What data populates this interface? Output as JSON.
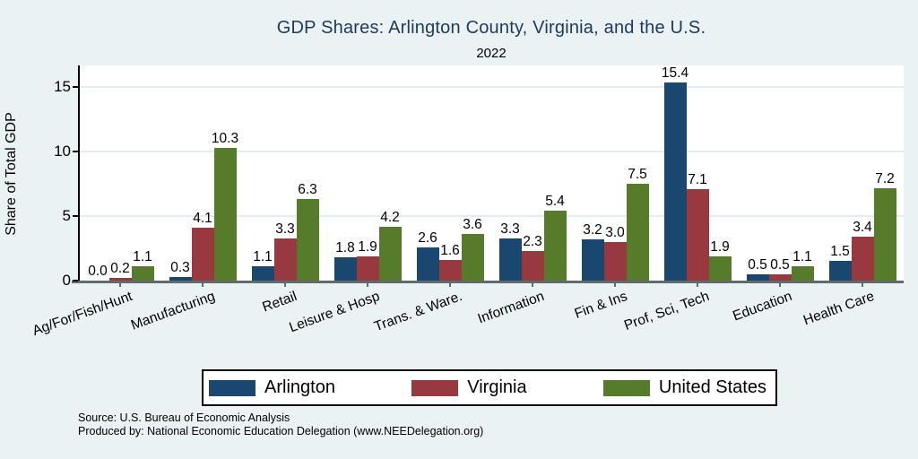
{
  "page": {
    "background_color": "#eaf2f3",
    "plot_background_color": "#ffffff"
  },
  "chart_data": {
    "type": "bar",
    "title": "GDP Shares: Arlington County, Virginia, and the U.S.",
    "subtitle": "2022",
    "xlabel": "",
    "ylabel": "Share of Total GDP",
    "ylim": [
      0,
      16.7
    ],
    "yticks": [
      0,
      5,
      10,
      15
    ],
    "grid": true,
    "legend_position": "bottom",
    "bar_value_labels": true,
    "categories": [
      "Ag/For/Fish/Hunt",
      "Manufacturing",
      "Retail",
      "Leisure & Hosp",
      "Trans. & Ware.",
      "Information",
      "Fin & Ins",
      "Prof, Sci, Tech",
      "Education",
      "Health Care"
    ],
    "series": [
      {
        "name": "Arlington",
        "color": "#1a476f",
        "values": [
          0.0,
          0.3,
          1.1,
          1.8,
          2.6,
          3.3,
          3.2,
          15.4,
          0.5,
          1.5
        ]
      },
      {
        "name": "Virginia",
        "color": "#98383f",
        "values": [
          0.2,
          4.1,
          3.3,
          1.9,
          1.6,
          2.3,
          3.0,
          7.1,
          0.5,
          3.4
        ]
      },
      {
        "name": "United States",
        "color": "#567b2a",
        "values": [
          1.1,
          10.3,
          6.3,
          4.2,
          3.6,
          5.4,
          7.5,
          1.9,
          1.1,
          7.2
        ]
      }
    ]
  },
  "title_color": "#1f3864",
  "footer": {
    "source": "Source: U.S. Bureau of Economic Analysis",
    "produced_by": "Produced by: National Economic Education Delegation (www.NEEDelegation.org)"
  }
}
